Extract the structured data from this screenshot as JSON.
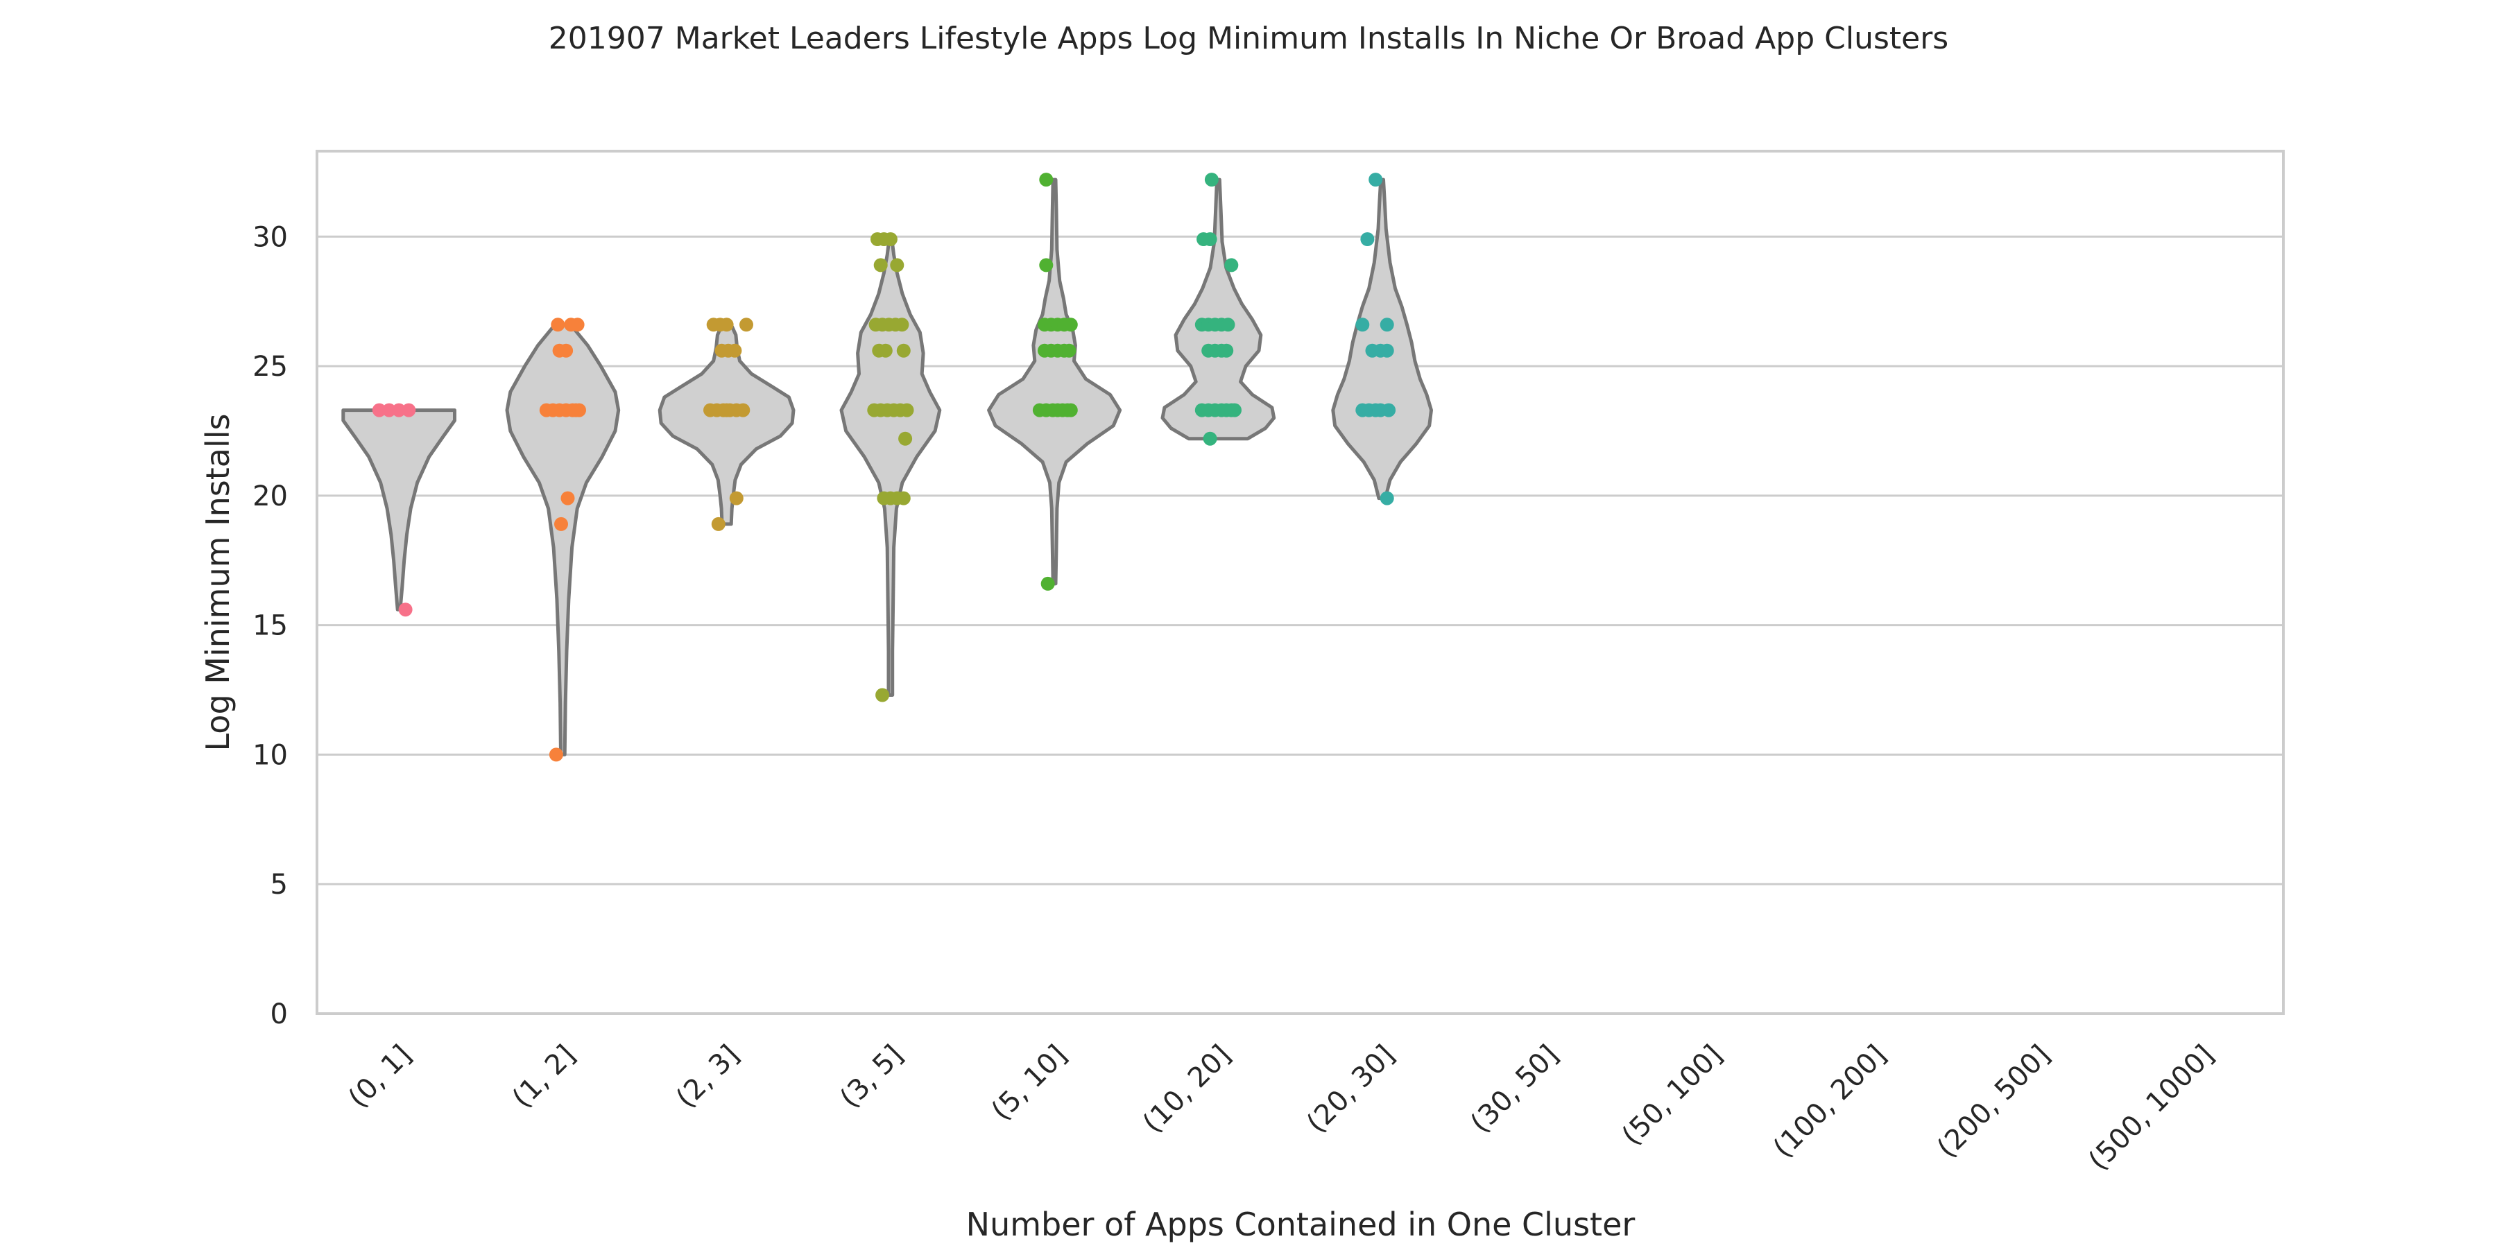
{
  "chart_data": {
    "type": "violin",
    "title": "201907 Market Leaders Lifestyle Apps Log Minimum Installs In Niche Or Broad App Clusters",
    "xlabel": "Number of Apps Contained in One Cluster",
    "ylabel": "Log Minimum Installs",
    "ylim": [
      0,
      33.3
    ],
    "yticks": [
      0,
      5,
      10,
      15,
      20,
      25,
      30
    ],
    "grid": "horizontal",
    "categories": [
      "(0, 1]",
      "(1, 2]",
      "(2, 3]",
      "(3, 5]",
      "(5, 10]",
      "(10, 20]",
      "(20, 30]",
      "(30, 50]",
      "(50, 100]",
      "(100, 200]",
      "(200, 500]",
      "(500, 1000]"
    ],
    "colors": [
      "#f77189",
      "#f7813a",
      "#c39a32",
      "#98a832",
      "#50b131",
      "#35b37e",
      "#36ada4",
      "#38a9c5",
      "#3ba3ec",
      "#a48cf4",
      "#e866f4",
      "#f668c2"
    ],
    "violins": [
      {
        "category": "(0, 1]",
        "min": 15.6,
        "max": 23.3,
        "profile": [
          [
            15.6,
            0.02
          ],
          [
            16.5,
            0.05
          ],
          [
            17.5,
            0.08
          ],
          [
            18.5,
            0.12
          ],
          [
            19.5,
            0.18
          ],
          [
            20.5,
            0.28
          ],
          [
            21.5,
            0.46
          ],
          [
            22.3,
            0.68
          ],
          [
            22.9,
            0.85
          ],
          [
            23.3,
            0.85
          ]
        ]
      },
      {
        "category": "(1, 2]",
        "min": 10.0,
        "max": 26.6,
        "profile": [
          [
            10.0,
            0.03
          ],
          [
            12,
            0.04
          ],
          [
            14,
            0.06
          ],
          [
            16,
            0.09
          ],
          [
            18,
            0.14
          ],
          [
            19.5,
            0.22
          ],
          [
            20.5,
            0.36
          ],
          [
            21.5,
            0.6
          ],
          [
            22.5,
            0.8
          ],
          [
            23.3,
            0.85
          ],
          [
            24,
            0.8
          ],
          [
            25,
            0.58
          ],
          [
            25.8,
            0.38
          ],
          [
            26.6,
            0.12
          ]
        ]
      },
      {
        "category": "(2, 3]",
        "min": 18.9,
        "max": 26.6,
        "profile": [
          [
            18.9,
            0.07
          ],
          [
            19.5,
            0.08
          ],
          [
            20,
            0.1
          ],
          [
            20.6,
            0.13
          ],
          [
            21.2,
            0.22
          ],
          [
            21.8,
            0.45
          ],
          [
            22.3,
            0.82
          ],
          [
            22.8,
            1.0
          ],
          [
            23.3,
            1.02
          ],
          [
            23.8,
            0.95
          ],
          [
            24.2,
            0.7
          ],
          [
            24.7,
            0.38
          ],
          [
            25.2,
            0.2
          ],
          [
            25.7,
            0.16
          ],
          [
            26.2,
            0.14
          ],
          [
            26.6,
            0.07
          ]
        ]
      },
      {
        "category": "(3, 5]",
        "min": 12.3,
        "max": 29.9,
        "profile": [
          [
            12.3,
            0.03
          ],
          [
            14,
            0.03
          ],
          [
            16,
            0.04
          ],
          [
            18,
            0.05
          ],
          [
            19.5,
            0.09
          ],
          [
            20.5,
            0.18
          ],
          [
            21.5,
            0.4
          ],
          [
            22.5,
            0.68
          ],
          [
            23.3,
            0.75
          ],
          [
            24,
            0.6
          ],
          [
            24.7,
            0.48
          ],
          [
            25.5,
            0.5
          ],
          [
            26.3,
            0.45
          ],
          [
            27,
            0.3
          ],
          [
            27.8,
            0.18
          ],
          [
            28.6,
            0.1
          ],
          [
            29.3,
            0.05
          ],
          [
            29.9,
            0.02
          ]
        ]
      },
      {
        "category": "(5, 10]",
        "min": 16.6,
        "max": 32.2,
        "profile": [
          [
            16.6,
            0.02
          ],
          [
            18,
            0.03
          ],
          [
            19.5,
            0.04
          ],
          [
            20.5,
            0.07
          ],
          [
            21.3,
            0.18
          ],
          [
            22,
            0.5
          ],
          [
            22.7,
            0.9
          ],
          [
            23.3,
            1.0
          ],
          [
            23.9,
            0.85
          ],
          [
            24.5,
            0.48
          ],
          [
            25.2,
            0.3
          ],
          [
            25.8,
            0.32
          ],
          [
            26.4,
            0.28
          ],
          [
            27,
            0.18
          ],
          [
            27.6,
            0.14
          ],
          [
            28.3,
            0.08
          ],
          [
            29.5,
            0.04
          ],
          [
            31,
            0.03
          ],
          [
            32.2,
            0.02
          ]
        ]
      },
      {
        "category": "(10, 20]",
        "min": 22.2,
        "max": 32.2,
        "profile": [
          [
            22.2,
            0.45
          ],
          [
            22.6,
            0.72
          ],
          [
            23,
            0.85
          ],
          [
            23.4,
            0.82
          ],
          [
            23.9,
            0.52
          ],
          [
            24.4,
            0.34
          ],
          [
            25,
            0.42
          ],
          [
            25.6,
            0.62
          ],
          [
            26.2,
            0.65
          ],
          [
            26.8,
            0.52
          ],
          [
            27.4,
            0.36
          ],
          [
            28,
            0.24
          ],
          [
            28.8,
            0.12
          ],
          [
            29.8,
            0.06
          ],
          [
            31,
            0.04
          ],
          [
            32.2,
            0.02
          ]
        ]
      },
      {
        "category": "(20, 30]",
        "min": 19.9,
        "max": 32.2,
        "profile": [
          [
            19.9,
            0.05
          ],
          [
            20.6,
            0.12
          ],
          [
            21.3,
            0.28
          ],
          [
            22,
            0.52
          ],
          [
            22.7,
            0.72
          ],
          [
            23.3,
            0.75
          ],
          [
            23.9,
            0.68
          ],
          [
            24.5,
            0.58
          ],
          [
            25.2,
            0.5
          ],
          [
            25.9,
            0.45
          ],
          [
            26.6,
            0.38
          ],
          [
            27.3,
            0.3
          ],
          [
            28,
            0.2
          ],
          [
            29,
            0.12
          ],
          [
            30.3,
            0.06
          ],
          [
            31.3,
            0.04
          ],
          [
            32.2,
            0.02
          ]
        ]
      }
    ],
    "points": [
      {
        "category": "(0, 1]",
        "values": [
          23.3,
          23.3,
          23.3,
          23.3,
          15.6
        ],
        "jitter": [
          -0.12,
          -0.06,
          0.0,
          0.06,
          0.04
        ]
      },
      {
        "category": "(1, 2]",
        "values": [
          26.6,
          26.6,
          26.6,
          25.6,
          25.6,
          23.3,
          23.3,
          23.3,
          23.3,
          23.3,
          23.3,
          23.3,
          19.9,
          18.9,
          10.0
        ],
        "jitter": [
          -0.03,
          0.05,
          0.09,
          -0.02,
          0.02,
          -0.1,
          -0.06,
          -0.02,
          0.02,
          0.06,
          0.1,
          0.08,
          0.03,
          -0.01,
          -0.04
        ]
      },
      {
        "category": "(2, 3]",
        "values": [
          26.6,
          26.6,
          26.6,
          26.6,
          25.6,
          25.6,
          25.6,
          23.3,
          23.3,
          23.3,
          23.3,
          23.3,
          23.3,
          23.3,
          19.9,
          18.9
        ],
        "jitter": [
          -0.08,
          -0.04,
          0.0,
          0.12,
          -0.03,
          0.01,
          0.05,
          -0.1,
          -0.06,
          -0.02,
          0.02,
          0.06,
          0.1,
          0.0,
          0.06,
          -0.05
        ]
      },
      {
        "category": "(3, 5]",
        "values": [
          29.9,
          29.9,
          29.9,
          28.9,
          28.9,
          26.6,
          26.6,
          26.6,
          26.6,
          26.6,
          25.6,
          25.6,
          25.6,
          23.3,
          23.3,
          23.3,
          23.3,
          23.3,
          23.3,
          22.2,
          19.9,
          19.9,
          19.9,
          19.9,
          12.3
        ],
        "jitter": [
          -0.08,
          -0.04,
          0.0,
          -0.06,
          0.04,
          -0.09,
          -0.05,
          -0.01,
          0.03,
          0.07,
          -0.07,
          -0.03,
          0.08,
          -0.1,
          -0.06,
          -0.02,
          0.02,
          0.06,
          0.1,
          0.09,
          -0.04,
          0.0,
          0.04,
          0.08,
          -0.05
        ]
      },
      {
        "category": "(5, 10]",
        "values": [
          32.2,
          28.9,
          26.6,
          26.6,
          26.6,
          26.6,
          26.6,
          25.6,
          25.6,
          25.6,
          25.6,
          25.6,
          23.3,
          23.3,
          23.3,
          23.3,
          23.3,
          23.3,
          23.3,
          16.6
        ],
        "jitter": [
          -0.05,
          -0.05,
          -0.06,
          -0.02,
          0.02,
          0.06,
          0.1,
          -0.06,
          -0.02,
          0.02,
          0.06,
          0.09,
          -0.09,
          -0.05,
          -0.01,
          0.02,
          0.05,
          0.08,
          0.1,
          -0.04
        ]
      },
      {
        "category": "(10, 20]",
        "values": [
          32.2,
          29.9,
          29.9,
          28.9,
          26.6,
          26.6,
          26.6,
          26.6,
          26.6,
          25.6,
          25.6,
          25.6,
          25.6,
          23.3,
          23.3,
          23.3,
          23.3,
          23.3,
          23.3,
          23.3,
          22.2
        ],
        "jitter": [
          -0.04,
          -0.09,
          -0.05,
          0.08,
          -0.1,
          -0.06,
          -0.02,
          0.02,
          0.06,
          -0.06,
          -0.02,
          0.02,
          0.05,
          -0.1,
          -0.06,
          -0.02,
          0.02,
          0.05,
          0.08,
          0.1,
          -0.05
        ]
      },
      {
        "category": "(20, 30]",
        "values": [
          32.2,
          29.9,
          26.6,
          26.6,
          25.6,
          25.6,
          25.6,
          23.3,
          23.3,
          23.3,
          23.3,
          23.3,
          19.9
        ],
        "jitter": [
          -0.04,
          -0.09,
          -0.12,
          0.03,
          -0.06,
          -0.01,
          0.03,
          -0.12,
          -0.08,
          -0.04,
          -0.01,
          0.04,
          0.03
        ]
      }
    ]
  }
}
